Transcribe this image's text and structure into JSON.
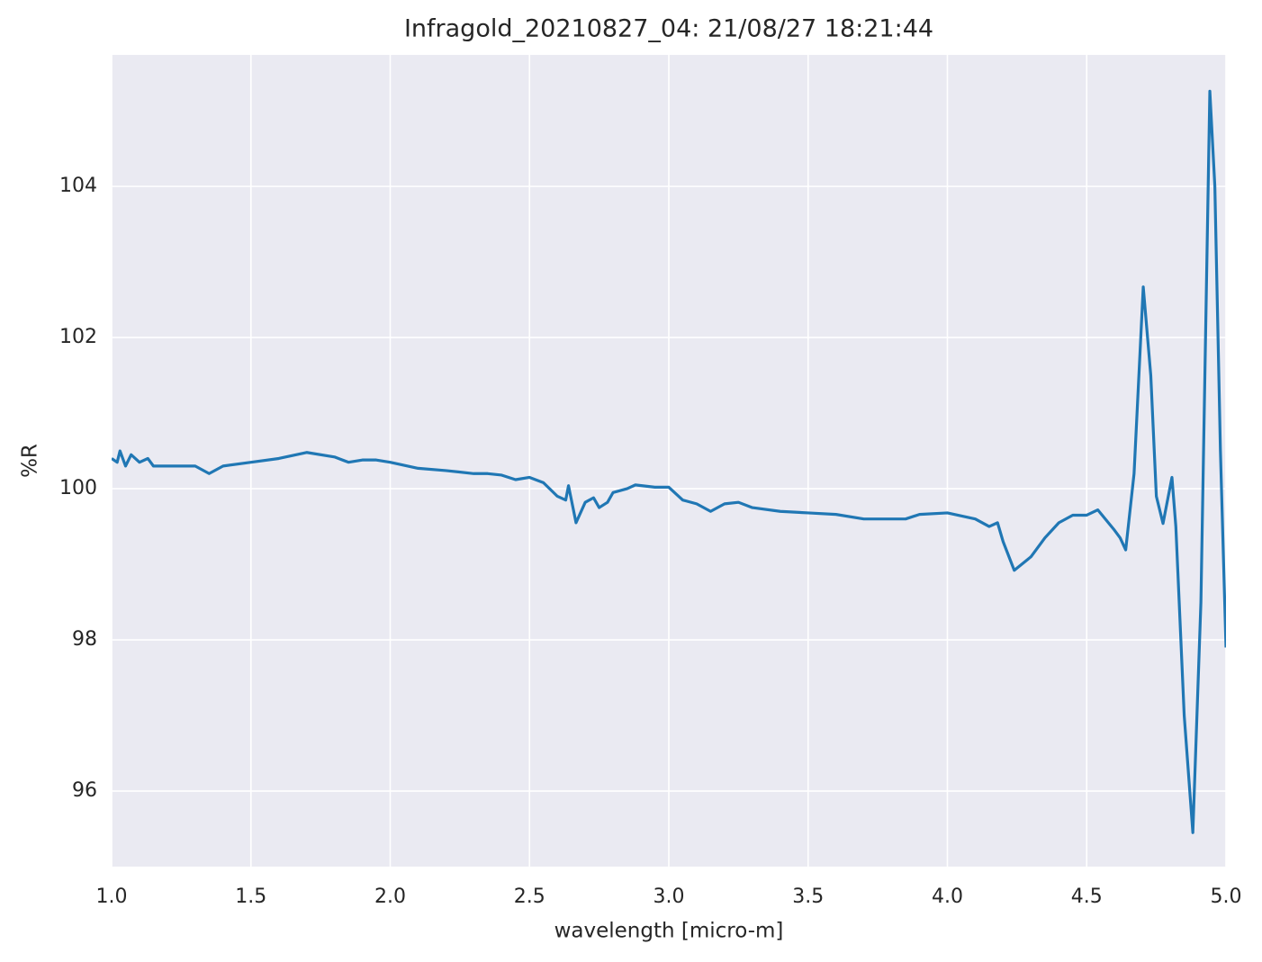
{
  "chart_data": {
    "type": "line",
    "title": "Infragold_20210827_04:  21/08/27 18:21:44",
    "x_label": "wavelength [micro-m]",
    "y_label": "%R",
    "xlim": [
      1.0,
      5.0
    ],
    "ylim": [
      95.0,
      105.74
    ],
    "xticks": [
      {
        "value": 1.0,
        "label": "1.0"
      },
      {
        "value": 1.5,
        "label": "1.5"
      },
      {
        "value": 2.0,
        "label": "2.0"
      },
      {
        "value": 2.5,
        "label": "2.5"
      },
      {
        "value": 3.0,
        "label": "3.0"
      },
      {
        "value": 3.5,
        "label": "3.5"
      },
      {
        "value": 4.0,
        "label": "4.0"
      },
      {
        "value": 4.5,
        "label": "4.5"
      },
      {
        "value": 5.0,
        "label": "5.0"
      }
    ],
    "yticks": [
      96,
      98,
      100,
      102,
      104
    ],
    "grid": true,
    "x": [
      1.0,
      1.02,
      1.03,
      1.05,
      1.07,
      1.1,
      1.13,
      1.15,
      1.2,
      1.25,
      1.3,
      1.35,
      1.4,
      1.5,
      1.6,
      1.7,
      1.8,
      1.85,
      1.9,
      1.95,
      2.0,
      2.1,
      2.2,
      2.3,
      2.35,
      2.4,
      2.45,
      2.5,
      2.55,
      2.6,
      2.63,
      2.64,
      2.667,
      2.7,
      2.73,
      2.75,
      2.78,
      2.8,
      2.85,
      2.88,
      2.95,
      3.0,
      3.05,
      3.1,
      3.15,
      3.2,
      3.25,
      3.3,
      3.4,
      3.5,
      3.6,
      3.7,
      3.8,
      3.85,
      3.9,
      4.0,
      4.1,
      4.15,
      4.18,
      4.2,
      4.24,
      4.3,
      4.35,
      4.4,
      4.45,
      4.5,
      4.54,
      4.6,
      4.62,
      4.64,
      4.67,
      4.703,
      4.73,
      4.75,
      4.774,
      4.806,
      4.82,
      4.85,
      4.881,
      4.91,
      4.942,
      4.96,
      4.98,
      5.0
    ],
    "series": [
      {
        "name": "%R",
        "color": "#2077b4",
        "values": [
          100.4,
          100.35,
          100.5,
          100.3,
          100.45,
          100.35,
          100.4,
          100.3,
          100.3,
          100.3,
          100.3,
          100.2,
          100.3,
          100.35,
          100.4,
          100.48,
          100.42,
          100.35,
          100.38,
          100.38,
          100.35,
          100.27,
          100.24,
          100.2,
          100.2,
          100.18,
          100.12,
          100.15,
          100.08,
          99.9,
          99.85,
          100.04,
          99.55,
          99.82,
          99.88,
          99.75,
          99.82,
          99.95,
          100.0,
          100.05,
          100.02,
          100.02,
          99.85,
          99.8,
          99.7,
          99.8,
          99.82,
          99.75,
          99.7,
          99.68,
          99.66,
          99.6,
          99.6,
          99.6,
          99.66,
          99.68,
          99.6,
          99.5,
          99.55,
          99.3,
          98.92,
          99.1,
          99.35,
          99.55,
          99.65,
          99.65,
          99.72,
          99.45,
          99.35,
          99.19,
          100.2,
          102.67,
          101.5,
          99.9,
          99.54,
          100.15,
          99.5,
          97.0,
          95.45,
          98.5,
          105.26,
          104.0,
          100.5,
          97.9
        ]
      }
    ]
  }
}
